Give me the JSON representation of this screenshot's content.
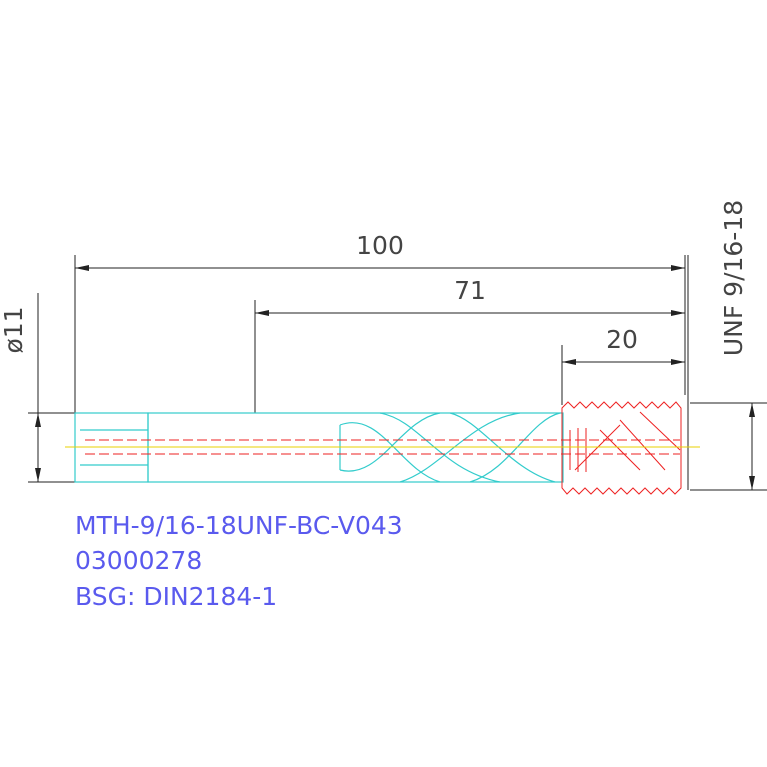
{
  "dimensions": {
    "overall_length": "100",
    "flute_length": "71",
    "thread_length": "20",
    "shank_diameter": "ø11",
    "thread_size": "UNF 9/16-18"
  },
  "label": {
    "lines": [
      "MTH-9/16-18UNF-BC-V043",
      "03000278",
      "BSG: DIN2184-1"
    ]
  }
}
